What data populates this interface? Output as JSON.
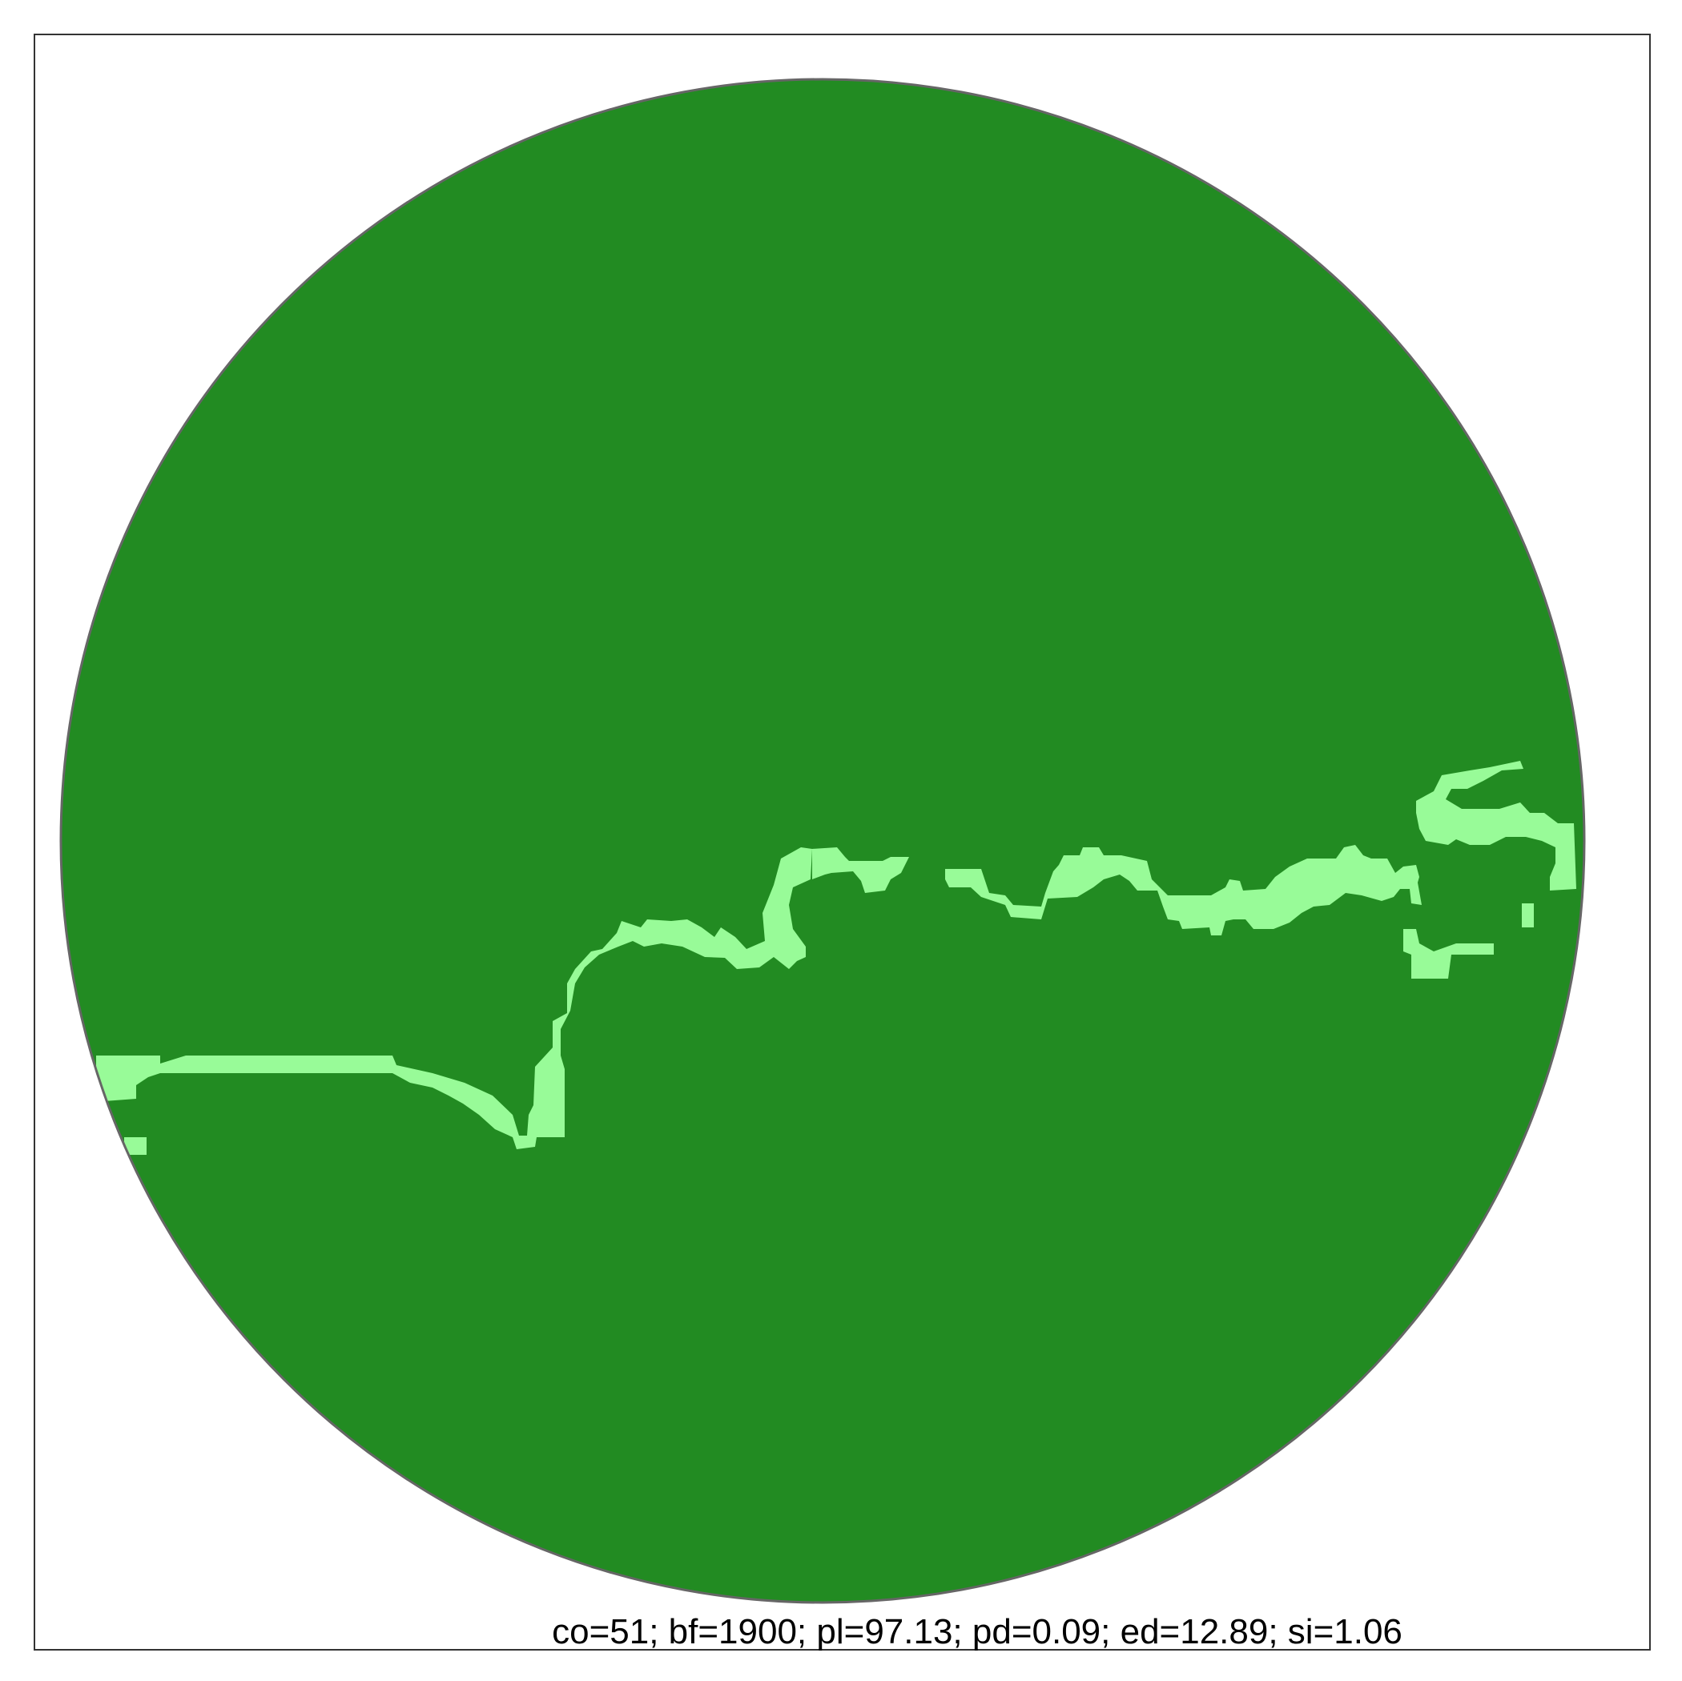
{
  "figure": {
    "caption": "co=51; bf=1900; pl=97.13; pd=0.09; ed=12.89; si=1.06"
  },
  "colors": {
    "background": "#ffffff",
    "frame": "#333333",
    "circle_outline": "#666666",
    "forest": "#228b22",
    "nonforest": "#98fb98"
  }
}
